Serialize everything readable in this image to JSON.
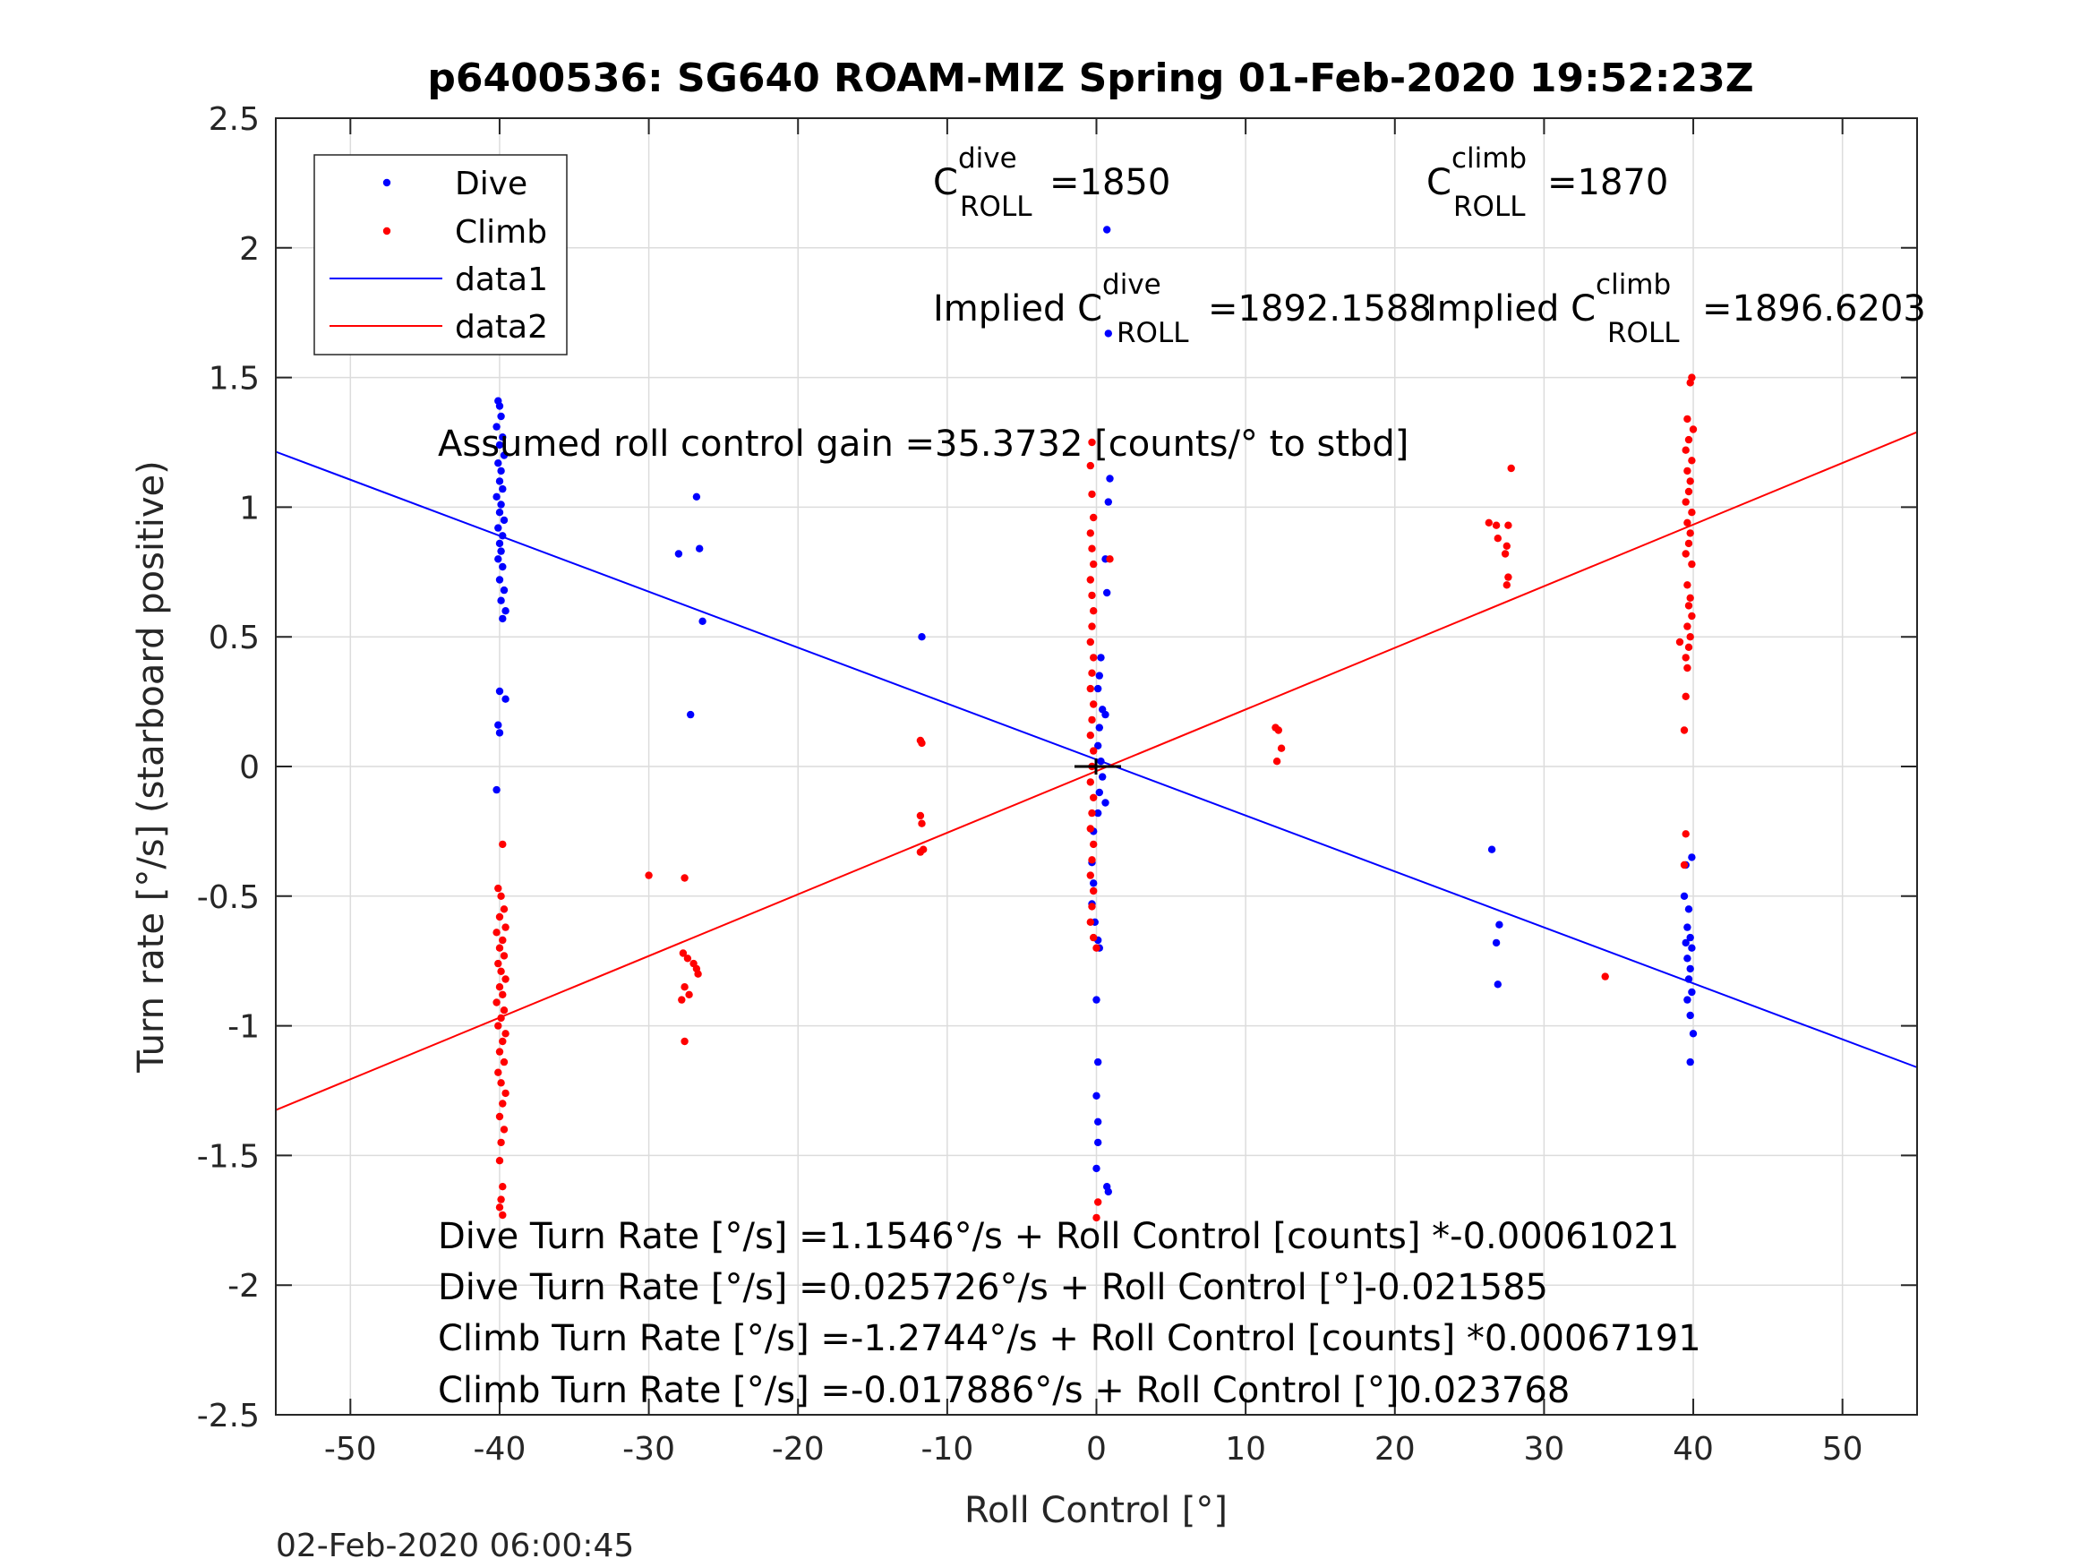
{
  "chart_data": {
    "type": "scatter",
    "title": "p6400536: SG640 ROAM-MIZ Spring 01-Feb-2020 19:52:23Z",
    "xlabel": "Roll Control [°]",
    "ylabel": "Turn rate [°/s] (starboard positive)",
    "xlim": [
      -55,
      55
    ],
    "ylim": [
      -2.5,
      2.5
    ],
    "xticks": [
      -50,
      -40,
      -30,
      -20,
      -10,
      0,
      10,
      20,
      30,
      40,
      50
    ],
    "yticks": [
      -2.5,
      -2,
      -1.5,
      -1,
      -0.5,
      0,
      0.5,
      1,
      1.5,
      2,
      2.5
    ],
    "ytick_labels": [
      "-2.5",
      "-2",
      "-1.5",
      "-1",
      "-0.5",
      "0",
      "0.5",
      "1",
      "1.5",
      "2",
      "2.5"
    ],
    "grid": true,
    "legend_position": "top-left",
    "series": [
      {
        "name": "Dive",
        "kind": "points",
        "color": "#0000ff",
        "points": [
          [
            -40.1,
            1.41
          ],
          [
            -40.0,
            1.39
          ],
          [
            -39.9,
            1.35
          ],
          [
            -40.2,
            1.31
          ],
          [
            -39.8,
            1.27
          ],
          [
            -40.0,
            1.24
          ],
          [
            -39.7,
            1.2
          ],
          [
            -40.1,
            1.17
          ],
          [
            -39.9,
            1.14
          ],
          [
            -40.0,
            1.1
          ],
          [
            -39.8,
            1.07
          ],
          [
            -40.2,
            1.04
          ],
          [
            -39.9,
            1.01
          ],
          [
            -40.0,
            0.98
          ],
          [
            -39.7,
            0.95
          ],
          [
            -40.1,
            0.92
          ],
          [
            -39.8,
            0.89
          ],
          [
            -40.0,
            0.86
          ],
          [
            -39.9,
            0.83
          ],
          [
            -40.1,
            0.8
          ],
          [
            -39.8,
            0.77
          ],
          [
            -40.0,
            0.72
          ],
          [
            -39.7,
            0.68
          ],
          [
            -39.9,
            0.64
          ],
          [
            -39.6,
            0.6
          ],
          [
            -39.8,
            0.57
          ],
          [
            -40.0,
            0.29
          ],
          [
            -39.6,
            0.26
          ],
          [
            -40.1,
            0.16
          ],
          [
            -40.0,
            0.13
          ],
          [
            -40.2,
            -0.09
          ],
          [
            -28.0,
            0.82
          ],
          [
            -26.8,
            1.04
          ],
          [
            -26.6,
            0.84
          ],
          [
            -26.4,
            0.56
          ],
          [
            -27.2,
            0.2
          ],
          [
            -11.7,
            0.5
          ],
          [
            0.7,
            2.07
          ],
          [
            0.8,
            1.67
          ],
          [
            0.9,
            1.11
          ],
          [
            0.8,
            1.02
          ],
          [
            0.6,
            0.8
          ],
          [
            0.7,
            0.67
          ],
          [
            0.6,
            0.2
          ],
          [
            0.3,
            0.42
          ],
          [
            0.2,
            0.35
          ],
          [
            0.1,
            0.3
          ],
          [
            0.4,
            0.22
          ],
          [
            0.2,
            0.15
          ],
          [
            0.1,
            0.08
          ],
          [
            0.3,
            0.02
          ],
          [
            0.4,
            -0.04
          ],
          [
            0.2,
            -0.1
          ],
          [
            0.1,
            -0.18
          ],
          [
            0.6,
            -0.14
          ],
          [
            -0.2,
            -0.25
          ],
          [
            -0.3,
            -0.37
          ],
          [
            -0.2,
            -0.45
          ],
          [
            -0.3,
            -0.53
          ],
          [
            -0.1,
            -0.6
          ],
          [
            0.1,
            -0.67
          ],
          [
            0.2,
            -0.7
          ],
          [
            0.0,
            -0.9
          ],
          [
            0.1,
            -1.14
          ],
          [
            0.0,
            -1.27
          ],
          [
            0.1,
            -1.37
          ],
          [
            0.1,
            -1.45
          ],
          [
            0.0,
            -1.55
          ],
          [
            0.7,
            -1.62
          ],
          [
            0.8,
            -1.64
          ],
          [
            26.5,
            -0.32
          ],
          [
            27.0,
            -0.61
          ],
          [
            26.8,
            -0.68
          ],
          [
            26.9,
            -0.84
          ],
          [
            39.9,
            -0.35
          ],
          [
            39.5,
            -0.38
          ],
          [
            39.4,
            -0.5
          ],
          [
            39.7,
            -0.55
          ],
          [
            39.6,
            -0.62
          ],
          [
            39.8,
            -0.66
          ],
          [
            39.5,
            -0.68
          ],
          [
            39.9,
            -0.7
          ],
          [
            39.6,
            -0.74
          ],
          [
            39.8,
            -0.78
          ],
          [
            39.7,
            -0.82
          ],
          [
            39.9,
            -0.87
          ],
          [
            39.6,
            -0.9
          ],
          [
            39.8,
            -0.96
          ],
          [
            40.0,
            -1.03
          ],
          [
            39.8,
            -1.14
          ]
        ]
      },
      {
        "name": "Climb",
        "kind": "points",
        "color": "#ff0000",
        "points": [
          [
            -39.8,
            -0.3
          ],
          [
            -40.1,
            -0.47
          ],
          [
            -39.9,
            -0.5
          ],
          [
            -39.7,
            -0.55
          ],
          [
            -40.0,
            -0.58
          ],
          [
            -39.6,
            -0.62
          ],
          [
            -40.2,
            -0.64
          ],
          [
            -39.8,
            -0.67
          ],
          [
            -40.0,
            -0.7
          ],
          [
            -39.7,
            -0.73
          ],
          [
            -40.1,
            -0.76
          ],
          [
            -39.9,
            -0.79
          ],
          [
            -39.6,
            -0.82
          ],
          [
            -40.0,
            -0.85
          ],
          [
            -39.8,
            -0.88
          ],
          [
            -40.2,
            -0.91
          ],
          [
            -39.7,
            -0.94
          ],
          [
            -39.9,
            -0.97
          ],
          [
            -40.1,
            -1.0
          ],
          [
            -39.6,
            -1.03
          ],
          [
            -39.8,
            -1.06
          ],
          [
            -40.0,
            -1.1
          ],
          [
            -39.7,
            -1.14
          ],
          [
            -40.1,
            -1.18
          ],
          [
            -39.9,
            -1.22
          ],
          [
            -39.6,
            -1.26
          ],
          [
            -39.8,
            -1.3
          ],
          [
            -40.0,
            -1.35
          ],
          [
            -39.7,
            -1.4
          ],
          [
            -39.9,
            -1.45
          ],
          [
            -40.0,
            -1.52
          ],
          [
            -39.8,
            -1.62
          ],
          [
            -39.9,
            -1.67
          ],
          [
            -40.0,
            -1.7
          ],
          [
            -39.8,
            -1.73
          ],
          [
            -30.0,
            -0.42
          ],
          [
            -27.6,
            -0.43
          ],
          [
            -27.7,
            -0.72
          ],
          [
            -27.4,
            -0.74
          ],
          [
            -27.0,
            -0.76
          ],
          [
            -26.8,
            -0.78
          ],
          [
            -26.7,
            -0.8
          ],
          [
            -27.6,
            -0.85
          ],
          [
            -27.3,
            -0.88
          ],
          [
            -27.8,
            -0.9
          ],
          [
            -27.6,
            -1.06
          ],
          [
            -11.8,
            0.1
          ],
          [
            -11.7,
            0.09
          ],
          [
            -11.8,
            -0.19
          ],
          [
            -11.7,
            -0.22
          ],
          [
            -11.6,
            -0.32
          ],
          [
            -11.8,
            -0.33
          ],
          [
            -0.3,
            1.25
          ],
          [
            -0.4,
            1.16
          ],
          [
            -0.3,
            1.05
          ],
          [
            -0.2,
            0.96
          ],
          [
            -0.4,
            0.9
          ],
          [
            -0.3,
            0.84
          ],
          [
            -0.2,
            0.78
          ],
          [
            -0.4,
            0.72
          ],
          [
            -0.3,
            0.66
          ],
          [
            -0.2,
            0.6
          ],
          [
            -0.3,
            0.54
          ],
          [
            -0.4,
            0.48
          ],
          [
            -0.2,
            0.42
          ],
          [
            -0.3,
            0.36
          ],
          [
            -0.4,
            0.3
          ],
          [
            -0.2,
            0.24
          ],
          [
            -0.3,
            0.18
          ],
          [
            -0.4,
            0.12
          ],
          [
            -0.2,
            0.06
          ],
          [
            -0.3,
            0.0
          ],
          [
            -0.4,
            -0.06
          ],
          [
            -0.2,
            -0.12
          ],
          [
            -0.3,
            -0.18
          ],
          [
            -0.4,
            -0.24
          ],
          [
            -0.2,
            -0.3
          ],
          [
            -0.3,
            -0.36
          ],
          [
            -0.4,
            -0.42
          ],
          [
            -0.2,
            -0.48
          ],
          [
            -0.3,
            -0.54
          ],
          [
            -0.4,
            -0.6
          ],
          [
            -0.2,
            -0.66
          ],
          [
            0.0,
            -0.7
          ],
          [
            0.9,
            0.8
          ],
          [
            0.1,
            -1.68
          ],
          [
            0.0,
            -1.74
          ],
          [
            12.0,
            0.15
          ],
          [
            12.2,
            0.14
          ],
          [
            12.4,
            0.07
          ],
          [
            12.1,
            0.02
          ],
          [
            26.3,
            0.94
          ],
          [
            26.8,
            0.93
          ],
          [
            27.6,
            0.93
          ],
          [
            26.9,
            0.88
          ],
          [
            27.5,
            0.85
          ],
          [
            27.4,
            0.82
          ],
          [
            27.6,
            0.73
          ],
          [
            27.5,
            0.7
          ],
          [
            27.8,
            1.15
          ],
          [
            34.1,
            -0.81
          ],
          [
            39.9,
            1.5
          ],
          [
            39.8,
            1.48
          ],
          [
            39.6,
            1.34
          ],
          [
            40.0,
            1.3
          ],
          [
            39.7,
            1.26
          ],
          [
            39.5,
            1.22
          ],
          [
            39.9,
            1.18
          ],
          [
            39.6,
            1.14
          ],
          [
            39.8,
            1.1
          ],
          [
            39.7,
            1.06
          ],
          [
            39.5,
            1.02
          ],
          [
            39.9,
            0.98
          ],
          [
            39.6,
            0.94
          ],
          [
            39.8,
            0.9
          ],
          [
            39.7,
            0.86
          ],
          [
            39.5,
            0.82
          ],
          [
            39.9,
            0.78
          ],
          [
            39.6,
            0.7
          ],
          [
            39.8,
            0.65
          ],
          [
            39.7,
            0.62
          ],
          [
            39.9,
            0.58
          ],
          [
            39.6,
            0.54
          ],
          [
            39.8,
            0.5
          ],
          [
            39.7,
            0.46
          ],
          [
            39.1,
            0.48
          ],
          [
            39.5,
            0.42
          ],
          [
            39.6,
            0.38
          ],
          [
            39.5,
            0.27
          ],
          [
            39.4,
            0.14
          ],
          [
            39.5,
            -0.26
          ],
          [
            39.4,
            -0.38
          ]
        ]
      },
      {
        "name": "data1",
        "kind": "line",
        "color": "#0000ff",
        "points": [
          [
            -55,
            1.2139
          ],
          [
            55,
            -1.1603
          ]
        ]
      },
      {
        "name": "data2",
        "kind": "line",
        "color": "#ff0000",
        "points": [
          [
            -55,
            -1.3251
          ],
          [
            55,
            1.2893
          ]
        ]
      }
    ],
    "annotations": {
      "c_dive": {
        "base": "C",
        "sup": "dive",
        "sub": "ROLL",
        "value": "=1850"
      },
      "c_climb": {
        "base": "C",
        "sup": "climb",
        "sub": "ROLL",
        "value": "=1870"
      },
      "implied_dive": {
        "prefix": "Implied C",
        "sup": "dive",
        "sub": "ROLL",
        "value": "=1892.1588"
      },
      "implied_climb": {
        "prefix": "Implied C",
        "sup": "climb",
        "sub": "ROLL",
        "value": "=1896.6203"
      },
      "gain": "Assumed roll control gain =35.3732 [counts/° to stbd]",
      "fit_lines": [
        "Dive Turn Rate [°/s] =1.1546°/s + Roll Control [counts] *-0.00061021",
        "Dive Turn Rate [°/s] =0.025726°/s + Roll Control [°]-0.021585",
        "Climb Turn Rate [°/s] =-1.2744°/s + Roll Control [counts] *0.00067191",
        "Climb Turn Rate [°/s] =-0.017886°/s + Roll Control [°]0.023768"
      ]
    },
    "footer_timestamp": "02-Feb-2020 06:00:45"
  }
}
